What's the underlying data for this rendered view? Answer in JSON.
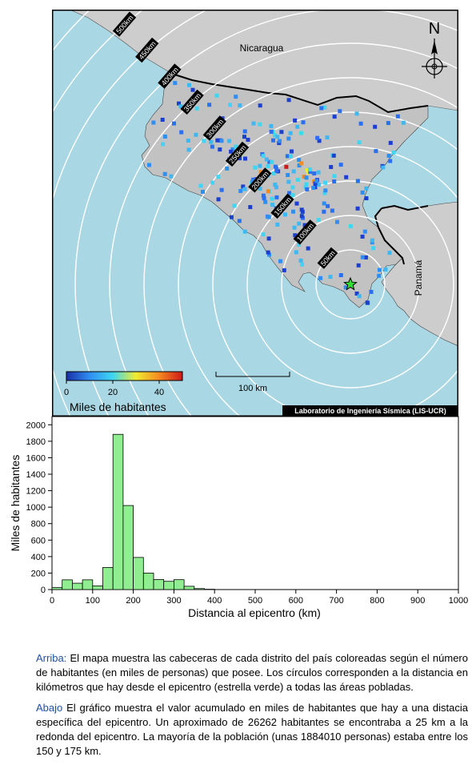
{
  "map": {
    "countries": [
      "Nicaragua",
      "Panamá"
    ],
    "north_label": "N",
    "ring_labels": [
      "50km",
      "100km",
      "150km",
      "200km",
      "250km",
      "300km",
      "350km",
      "400km",
      "450km",
      "500km"
    ],
    "colorbar": {
      "ticks": [
        "0",
        "20",
        "40"
      ],
      "label": "Miles de habitantes",
      "colors": [
        "#1b2ea8",
        "#2f8ef2",
        "#3fd6f2",
        "#f0ec30",
        "#f58a20",
        "#d01818"
      ]
    },
    "scalebar_label": "100 km",
    "credit": "Laboratorio de Ingeniería Sísmica (LIS-UCR)",
    "colors": {
      "sea": "#a9d7e3",
      "land": "#cdcdcd",
      "costa_rica": "#c2c2c2",
      "rings": "#ffffff",
      "epicenter": "#33dd33"
    }
  },
  "chart_data": {
    "type": "bar",
    "xlabel": "Distancia al epicentro (km)",
    "ylabel": "Miles de habitantes",
    "xlim": [
      0,
      1000
    ],
    "ylim": [
      0,
      2000
    ],
    "x_ticks": [
      0,
      100,
      200,
      300,
      400,
      500,
      600,
      700,
      800,
      900,
      1000
    ],
    "y_ticks": [
      0,
      200,
      400,
      600,
      800,
      1000,
      1200,
      1400,
      1600,
      1800,
      2000
    ],
    "bin_width": 25,
    "bin_starts": [
      0,
      25,
      50,
      75,
      100,
      125,
      150,
      175,
      200,
      225,
      250,
      275,
      300,
      325,
      350,
      375
    ],
    "values": [
      26,
      118,
      77,
      118,
      45,
      268,
      1884,
      1020,
      390,
      200,
      122,
      100,
      120,
      40,
      12,
      4
    ],
    "bar_color": "#90ee90"
  },
  "caption": {
    "p1_key": "Arriba:",
    "p1_text": " El mapa muestra las cabeceras de cada distrito del país coloreadas según el número de habitantes (en miles de personas) que posee.  Los círculos corresponden a la distancia en kilómetros que hay desde el epicentro (estrella verde) a todas las áreas pobladas.",
    "p2_key": "Abajo",
    "p2_text": " El gráfico muestra el valor acumulado en miles de habitantes que hay a una distacia específica del epicentro.  Un aproximado de 26262 habitantes se encontraba a 25 km a la redonda del epicentro.  La mayoría de la población (unas 1884010 personas) estaba entre los 150 y 175 km."
  }
}
